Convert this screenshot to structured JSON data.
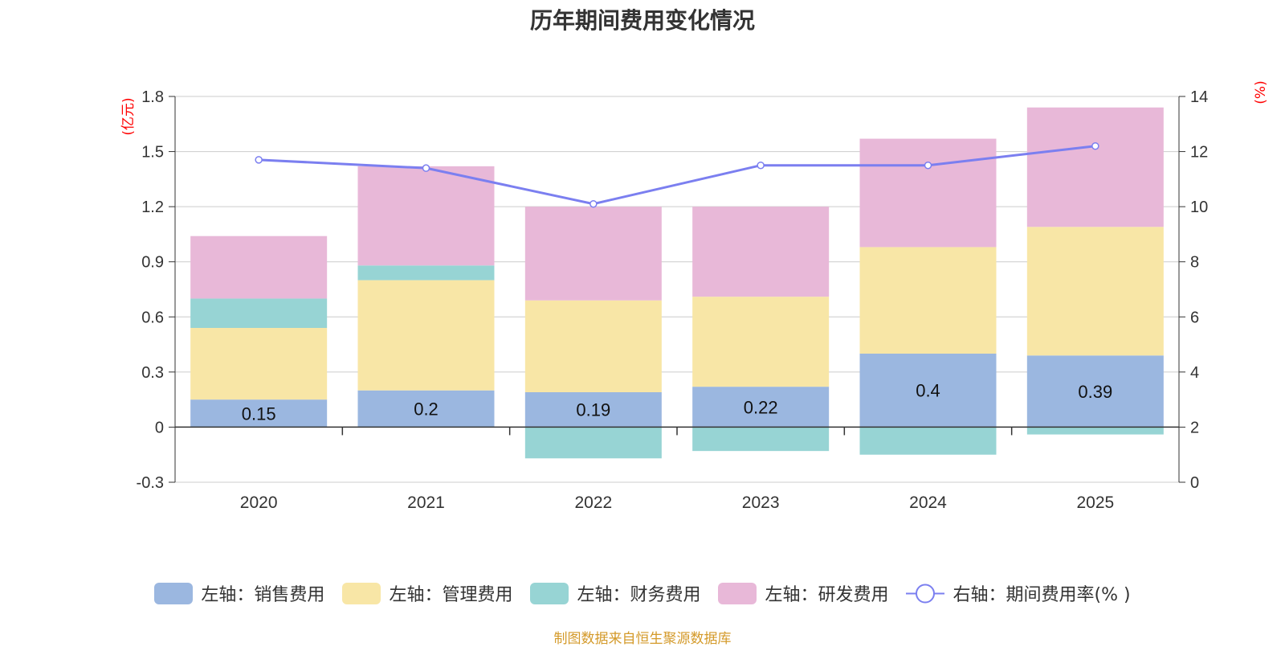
{
  "chart_data": {
    "type": "bar",
    "title": "历年期间费用变化情况",
    "categories": [
      "2020",
      "2021",
      "2022",
      "2023",
      "2024",
      "2025"
    ],
    "left_axis": {
      "label": "(亿元)",
      "ylim": [
        -0.3,
        1.8
      ],
      "ticks": [
        "1.8",
        "1.5",
        "1.2",
        "0.9",
        "0.6",
        "0.3",
        "0",
        "-0.3"
      ]
    },
    "right_axis": {
      "label": "(%)",
      "ylim": [
        0,
        14
      ],
      "ticks": [
        "14",
        "12",
        "10",
        "8",
        "6",
        "4",
        "2",
        "0"
      ]
    },
    "series": [
      {
        "name": "左轴：销售费用",
        "kind": "bar",
        "color": "#9bb7e0",
        "values": [
          0.15,
          0.2,
          0.19,
          0.22,
          0.4,
          0.39
        ],
        "labels": [
          "0.15",
          "0.2",
          "0.19",
          "0.22",
          "0.4",
          "0.39"
        ]
      },
      {
        "name": "左轴：管理费用",
        "kind": "bar",
        "color": "#f8e6a6",
        "values": [
          0.39,
          0.6,
          0.5,
          0.49,
          0.58,
          0.7
        ]
      },
      {
        "name": "左轴：财务费用",
        "kind": "bar",
        "color": "#97d4d4",
        "values": [
          0.16,
          0.08,
          -0.17,
          -0.13,
          -0.15,
          -0.04
        ]
      },
      {
        "name": "左轴：研发费用",
        "kind": "bar",
        "color": "#e8b8d8",
        "values": [
          0.34,
          0.54,
          0.51,
          0.49,
          0.59,
          0.65
        ]
      },
      {
        "name": "右轴：期间费用率(% )",
        "kind": "line",
        "color": "#7b7ff0",
        "values": [
          11.7,
          11.4,
          10.1,
          11.5,
          11.5,
          12.2
        ]
      }
    ]
  },
  "source_note": "制图数据来自恒生聚源数据库"
}
